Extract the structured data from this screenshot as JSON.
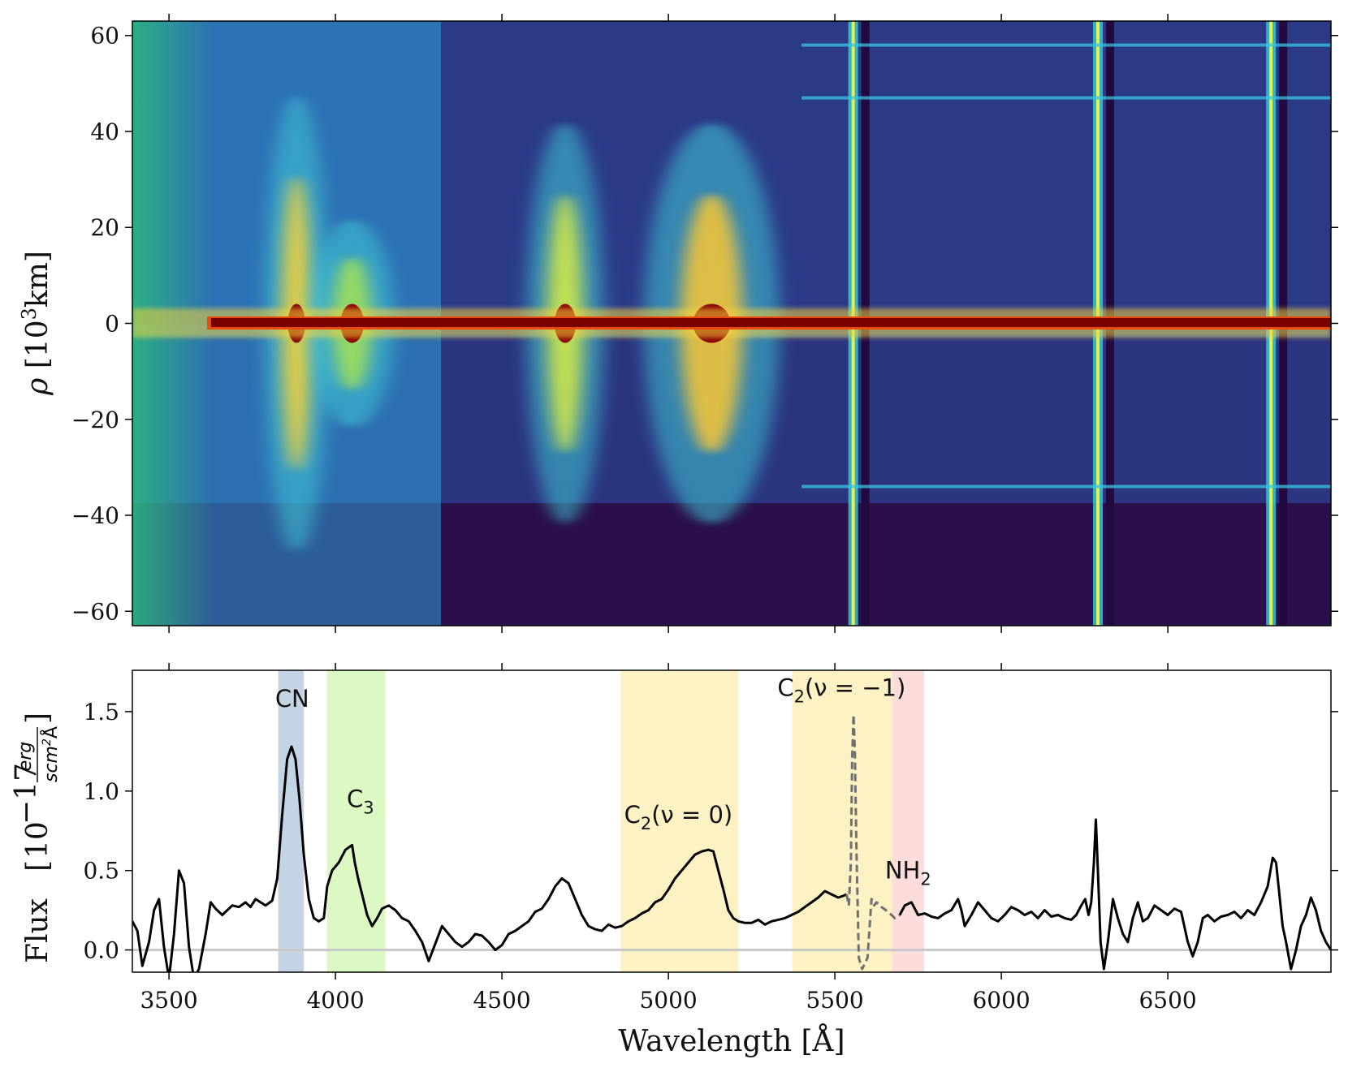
{
  "chart_data": [
    {
      "type": "heatmap",
      "ylabel_symbol": "ρ",
      "ylabel_unit_base": "[10",
      "ylabel_unit_exp": "3",
      "ylabel_unit_tail": "km]",
      "xlim": [
        3390,
        6990
      ],
      "ylim": [
        -63,
        63
      ],
      "x_ticks": [
        3500,
        4000,
        4500,
        5000,
        5500,
        6000,
        6500
      ],
      "y_ticks": [
        60,
        40,
        20,
        0,
        -20,
        -40,
        -60
      ],
      "y_tick_labels": [
        "60",
        "40",
        "20",
        "0",
        "−20",
        "−40",
        "−60"
      ],
      "colormap": "jet-like (dark navy → blue → cyan → yellow → red → dark red)",
      "emission_bands_A": [
        3883,
        4050,
        4690,
        5130
      ],
      "bright_vertical_lines_A": [
        5555,
        6290,
        6810
      ],
      "horizontal_streaks_km1e3": [
        58,
        47,
        -34
      ],
      "colors": {
        "background": "#2b0f4c",
        "core": "#7a0000"
      }
    },
    {
      "type": "line",
      "xlabel": "Wavelength [Å]",
      "ylabel_main": "Flux",
      "ylabel_factor": "10",
      "ylabel_exp": "−17",
      "ylabel_num": "erg",
      "ylabel_den": "scm",
      "ylabel_den_exp": "2",
      "ylabel_den_tail": "Å",
      "xlim": [
        3390,
        6990
      ],
      "ylim": [
        -0.14,
        1.76
      ],
      "x_ticks": [
        3500,
        4000,
        4500,
        5000,
        5500,
        6000,
        6500
      ],
      "x_tick_labels": [
        "3500",
        "4000",
        "4500",
        "5000",
        "5500",
        "6000",
        "6500"
      ],
      "y_ticks": [
        0.0,
        0.5,
        1.0,
        1.5
      ],
      "y_tick_labels": [
        "0.0",
        "0.5",
        "1.0",
        "1.5"
      ],
      "bands": [
        {
          "x0": 3828,
          "x1": 3905,
          "color": "#b8cce0"
        },
        {
          "x0": 3975,
          "x1": 4150,
          "color": "#d6f7b8"
        },
        {
          "x0": 4857,
          "x1": 5210,
          "color": "#fcf0b8"
        },
        {
          "x0": 5372,
          "x1": 5672,
          "color": "#fcf0b8"
        },
        {
          "x0": 5672,
          "x1": 5768,
          "color": "#fbd7d5"
        }
      ],
      "annotations": [
        {
          "base": "CN",
          "sub": "",
          "tail": "",
          "x": 3870,
          "y": 1.53
        },
        {
          "base": "C",
          "sub": "3",
          "tail": "",
          "x": 4075,
          "y": 0.9
        },
        {
          "base": "C",
          "sub": "2",
          "tail": "(ν = 0)",
          "x": 5030,
          "y": 0.8
        },
        {
          "base": "C",
          "sub": "2",
          "tail": "(ν = −1)",
          "x": 5520,
          "y": 1.6
        },
        {
          "base": "NH",
          "sub": "2",
          "tail": "",
          "x": 5720,
          "y": 0.45
        }
      ],
      "series": [
        {
          "line": "solid",
          "color": "#000000",
          "x": [
            3390,
            3405,
            3420,
            3440,
            3455,
            3470,
            3485,
            3500,
            3515,
            3530,
            3545,
            3560,
            3575,
            3590,
            3610,
            3625,
            3640,
            3660,
            3675,
            3690,
            3710,
            3730,
            3745,
            3760,
            3775,
            3790,
            3810,
            3825,
            3840,
            3855,
            3868,
            3880,
            3892,
            3905,
            3920,
            3935,
            3950,
            3965,
            3975,
            3990,
            4010,
            4030,
            4050,
            4058,
            4068,
            4080,
            4095,
            4110,
            4125,
            4140,
            4160,
            4180,
            4200,
            4220,
            4240,
            4260,
            4280,
            4300,
            4320,
            4340,
            4360,
            4380,
            4400,
            4420,
            4440,
            4460,
            4480,
            4500,
            4520,
            4540,
            4560,
            4580,
            4600,
            4620,
            4640,
            4660,
            4680,
            4700,
            4720,
            4740,
            4760,
            4780,
            4800,
            4820,
            4840,
            4860,
            4880,
            4900,
            4920,
            4940,
            4960,
            4980,
            5000,
            5020,
            5040,
            5060,
            5080,
            5100,
            5120,
            5135,
            5150,
            5165,
            5180,
            5195,
            5210,
            5230,
            5250,
            5270,
            5290,
            5310,
            5330,
            5350,
            5370,
            5390,
            5410,
            5430,
            5450,
            5470,
            5490,
            5510,
            5525,
            5535
          ],
          "y": [
            0.18,
            0.12,
            -0.1,
            0.05,
            0.25,
            0.32,
            0.02,
            -0.18,
            0.1,
            0.5,
            0.42,
            0.02,
            -0.18,
            -0.12,
            0.1,
            0.3,
            0.26,
            0.22,
            0.25,
            0.28,
            0.27,
            0.3,
            0.27,
            0.32,
            0.3,
            0.28,
            0.31,
            0.45,
            0.85,
            1.2,
            1.28,
            1.2,
            0.95,
            0.6,
            0.32,
            0.2,
            0.18,
            0.2,
            0.4,
            0.5,
            0.55,
            0.63,
            0.66,
            0.55,
            0.45,
            0.35,
            0.22,
            0.15,
            0.2,
            0.26,
            0.28,
            0.25,
            0.2,
            0.18,
            0.12,
            0.05,
            -0.07,
            0.04,
            0.15,
            0.1,
            0.05,
            0.02,
            0.05,
            0.1,
            0.09,
            0.05,
            0.0,
            0.03,
            0.1,
            0.12,
            0.15,
            0.18,
            0.24,
            0.26,
            0.32,
            0.4,
            0.45,
            0.42,
            0.32,
            0.22,
            0.15,
            0.13,
            0.12,
            0.16,
            0.14,
            0.15,
            0.18,
            0.2,
            0.23,
            0.25,
            0.3,
            0.32,
            0.38,
            0.45,
            0.5,
            0.55,
            0.6,
            0.62,
            0.63,
            0.62,
            0.5,
            0.38,
            0.25,
            0.2,
            0.18,
            0.17,
            0.17,
            0.19,
            0.16,
            0.18,
            0.19,
            0.2,
            0.22,
            0.24,
            0.27,
            0.3,
            0.33,
            0.37,
            0.35,
            0.33,
            0.34,
            0.35
          ]
        },
        {
          "line": "dashed",
          "color": "#707070",
          "x": [
            5535,
            5542,
            5548,
            5552,
            5556,
            5560,
            5565,
            5572,
            5582,
            5598,
            5610,
            5618,
            5625,
            5640,
            5660,
            5680,
            5695
          ],
          "y": [
            0.35,
            0.28,
            0.55,
            1.2,
            1.48,
            1.25,
            0.6,
            -0.05,
            -0.12,
            -0.05,
            0.32,
            0.28,
            0.3,
            0.27,
            0.24,
            0.2,
            0.22
          ]
        },
        {
          "line": "solid",
          "color": "#000000",
          "x": [
            5695,
            5710,
            5730,
            5750,
            5770,
            5790,
            5810,
            5830,
            5850,
            5870,
            5880,
            5890,
            5910,
            5930,
            5950,
            5970,
            5990,
            6010,
            6030,
            6050,
            6070,
            6090,
            6110,
            6130,
            6150,
            6170,
            6190,
            6210,
            6225,
            6240,
            6252,
            6262,
            6270,
            6278,
            6284,
            6290,
            6298,
            6308,
            6320,
            6335,
            6350,
            6365,
            6380,
            6395,
            6410,
            6425,
            6440,
            6460,
            6480,
            6500,
            6520,
            6540,
            6560,
            6575,
            6590,
            6605,
            6620,
            6640,
            6660,
            6680,
            6700,
            6720,
            6740,
            6760,
            6780,
            6800,
            6815,
            6825,
            6835,
            6845,
            6855,
            6870,
            6885,
            6900,
            6915,
            6930,
            6945,
            6960,
            6975,
            6990
          ],
          "y": [
            0.22,
            0.28,
            0.3,
            0.22,
            0.23,
            0.21,
            0.2,
            0.23,
            0.25,
            0.32,
            0.25,
            0.15,
            0.22,
            0.3,
            0.25,
            0.2,
            0.18,
            0.22,
            0.27,
            0.25,
            0.22,
            0.24,
            0.2,
            0.25,
            0.21,
            0.22,
            0.2,
            0.19,
            0.22,
            0.28,
            0.32,
            0.22,
            0.3,
            0.55,
            0.82,
            0.5,
            0.05,
            -0.12,
            0.05,
            0.32,
            0.2,
            0.1,
            0.05,
            0.2,
            0.3,
            0.18,
            0.2,
            0.28,
            0.25,
            0.22,
            0.26,
            0.24,
            0.05,
            -0.04,
            0.05,
            0.2,
            0.22,
            0.18,
            0.21,
            0.22,
            0.24,
            0.2,
            0.25,
            0.22,
            0.3,
            0.4,
            0.58,
            0.55,
            0.35,
            0.15,
            0.05,
            -0.12,
            0.0,
            0.15,
            0.22,
            0.33,
            0.25,
            0.12,
            0.05,
            0.0
          ]
        }
      ]
    }
  ]
}
